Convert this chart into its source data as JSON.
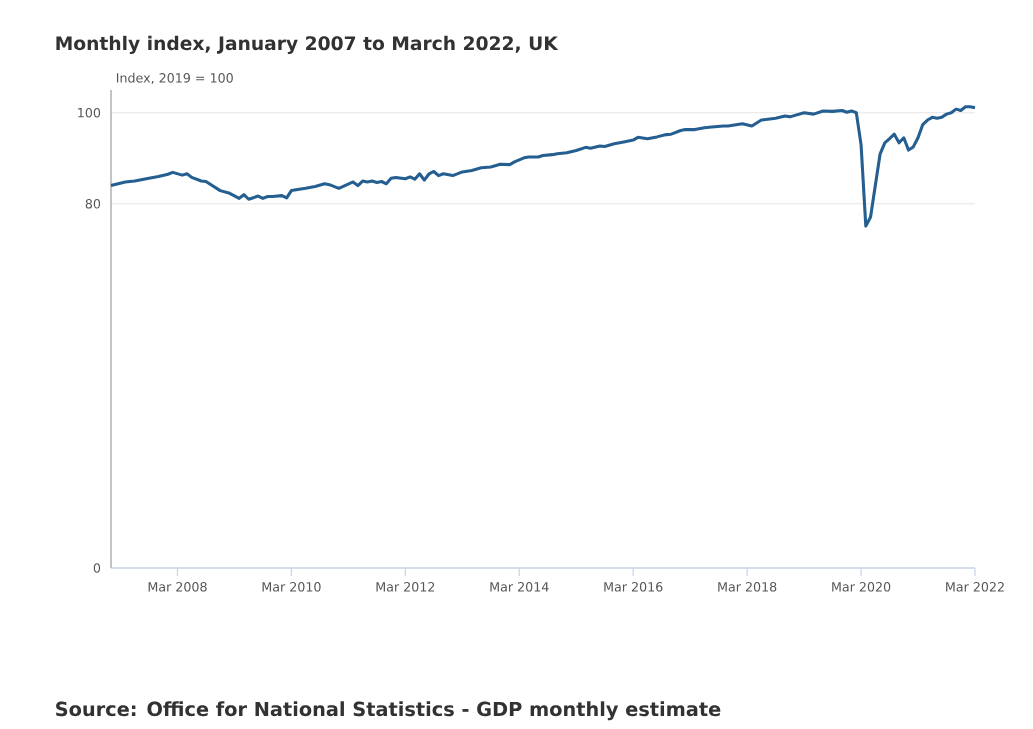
{
  "chart_data": {
    "type": "line",
    "title": "Monthly index, January 2007 to March 2022, UK",
    "ylabel": "Index, 2019 = 100",
    "annotations": [
      "Source: Office for National Statistics - GDP monthly estimate"
    ],
    "x": [
      "2007-01",
      "2007-04",
      "2007-06",
      "2007-09",
      "2007-11",
      "2008-01",
      "2008-02",
      "2008-04",
      "2008-05",
      "2008-06",
      "2008-08",
      "2008-09",
      "2008-12",
      "2009-02",
      "2009-04",
      "2009-05",
      "2009-06",
      "2009-08",
      "2009-09",
      "2009-10",
      "2009-11",
      "2010-01",
      "2010-02",
      "2010-03",
      "2010-06",
      "2010-08",
      "2010-10",
      "2010-11",
      "2011-01",
      "2011-04",
      "2011-05",
      "2011-06",
      "2011-07",
      "2011-08",
      "2011-09",
      "2011-10",
      "2011-11",
      "2011-12",
      "2012-01",
      "2012-03",
      "2012-04",
      "2012-05",
      "2012-06",
      "2012-07",
      "2012-08",
      "2012-09",
      "2012-10",
      "2012-11",
      "2013-01",
      "2013-03",
      "2013-05",
      "2013-06",
      "2013-07",
      "2013-09",
      "2013-11",
      "2014-01",
      "2014-02",
      "2014-04",
      "2014-05",
      "2014-07",
      "2014-08",
      "2014-10",
      "2014-11",
      "2015-01",
      "2015-03",
      "2015-05",
      "2015-06",
      "2015-08",
      "2015-09",
      "2015-11",
      "2016-01",
      "2016-03",
      "2016-04",
      "2016-06",
      "2016-08",
      "2016-10",
      "2016-11",
      "2017-01",
      "2017-02",
      "2017-04",
      "2017-06",
      "2017-07",
      "2017-10",
      "2017-11",
      "2018-02",
      "2018-04",
      "2018-06",
      "2018-09",
      "2018-11",
      "2018-12",
      "2019-03",
      "2019-05",
      "2019-07",
      "2019-09",
      "2019-11",
      "2019-12",
      "2020-01",
      "2020-02",
      "2020-03",
      "2020-04",
      "2020-05",
      "2020-07",
      "2020-08",
      "2020-09",
      "2020-10",
      "2020-11",
      "2020-12",
      "2021-01",
      "2021-02",
      "2021-03",
      "2021-04",
      "2021-05",
      "2021-06",
      "2021-07",
      "2021-08",
      "2021-09",
      "2021-10",
      "2021-11",
      "2021-12",
      "2022-01",
      "2022-02",
      "2022-03"
    ],
    "series": [
      {
        "color": "#255f91",
        "values": [
          84.0,
          84.8,
          85.0,
          85.6,
          86.0,
          86.5,
          86.9,
          86.3,
          86.6,
          85.8,
          85.0,
          84.9,
          82.9,
          82.3,
          81.2,
          82.0,
          81.0,
          81.7,
          81.2,
          81.6,
          81.6,
          81.8,
          81.3,
          82.9,
          83.4,
          83.8,
          84.4,
          84.2,
          83.4,
          84.8,
          84.0,
          85.0,
          84.8,
          85.0,
          84.7,
          84.9,
          84.4,
          85.6,
          85.8,
          85.5,
          85.9,
          85.4,
          86.6,
          85.2,
          86.6,
          87.1,
          86.2,
          86.6,
          86.2,
          87.0,
          87.3,
          87.6,
          87.9,
          88.1,
          88.7,
          88.6,
          89.2,
          90.1,
          90.3,
          90.3,
          90.6,
          90.8,
          91.0,
          91.2,
          91.7,
          92.4,
          92.2,
          92.7,
          92.6,
          93.2,
          93.6,
          94.0,
          94.6,
          94.3,
          94.7,
          95.2,
          95.3,
          96.1,
          96.3,
          96.3,
          96.7,
          96.8,
          97.1,
          97.1,
          97.6,
          97.1,
          98.4,
          98.8,
          99.3,
          99.1,
          100.0,
          99.7,
          100.4,
          100.3,
          100.5,
          100.1,
          100.4,
          100.0,
          93.0,
          75.1,
          77.1,
          90.9,
          93.4,
          94.3,
          95.3,
          93.4,
          94.5,
          91.8,
          92.5,
          94.5,
          97.4,
          98.4,
          99.0,
          98.8,
          99.0,
          99.7,
          100.0,
          100.8,
          100.5,
          101.3,
          101.3,
          101.1
        ]
      }
    ],
    "xlim": [
      "2007-01",
      "2022-03"
    ],
    "xticks": [
      {
        "value": "2008-03",
        "label": "Mar 2008"
      },
      {
        "value": "2010-03",
        "label": "Mar 2010"
      },
      {
        "value": "2012-03",
        "label": "Mar 2012"
      },
      {
        "value": "2014-03",
        "label": "Mar 2014"
      },
      {
        "value": "2016-03",
        "label": "Mar 2016"
      },
      {
        "value": "2018-03",
        "label": "Mar 2018"
      },
      {
        "value": "2020-03",
        "label": "Mar 2020"
      },
      {
        "value": "2022-03",
        "label": "Mar 2022"
      }
    ],
    "ylim": [
      0,
      105
    ],
    "yticks": [
      0,
      80,
      100
    ],
    "grid": "y",
    "line_style": "solid"
  }
}
